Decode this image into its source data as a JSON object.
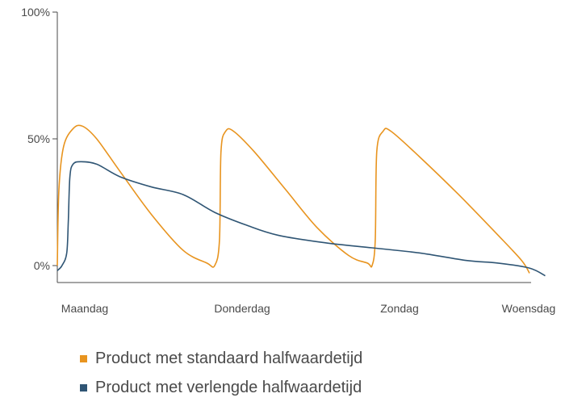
{
  "chart_data": {
    "type": "line",
    "title": "",
    "xlabel": "",
    "ylabel": "",
    "categories": [
      "Maandag",
      "Donderdag",
      "Zondag",
      "Woensdag"
    ],
    "y_ticks": [
      "100%",
      "50%",
      "0%"
    ],
    "ylim": [
      0,
      100
    ],
    "series": [
      {
        "name": "Product met standaard halfwaardetijd",
        "color": "#e8941f",
        "points": [
          [
            0.0,
            0
          ],
          [
            0.01,
            30
          ],
          [
            0.04,
            47
          ],
          [
            0.1,
            54
          ],
          [
            0.16,
            55
          ],
          [
            0.25,
            50
          ],
          [
            0.4,
            37
          ],
          [
            0.6,
            20
          ],
          [
            0.8,
            6
          ],
          [
            0.95,
            1
          ],
          [
            1.0,
            0
          ],
          [
            1.03,
            10
          ],
          [
            1.04,
            45
          ],
          [
            1.07,
            53
          ],
          [
            1.12,
            53
          ],
          [
            1.25,
            45
          ],
          [
            1.45,
            30
          ],
          [
            1.65,
            15
          ],
          [
            1.85,
            4
          ],
          [
            1.97,
            1
          ],
          [
            2.0,
            0
          ],
          [
            2.02,
            10
          ],
          [
            2.03,
            45
          ],
          [
            2.07,
            53
          ],
          [
            2.12,
            53
          ],
          [
            2.3,
            43
          ],
          [
            2.55,
            28
          ],
          [
            2.8,
            12
          ],
          [
            2.95,
            2
          ],
          [
            3.0,
            -3
          ]
        ]
      },
      {
        "name": "Product met verlengde halfwaardetijd",
        "color": "#2f5574",
        "points": [
          [
            0.0,
            -2
          ],
          [
            0.03,
            0
          ],
          [
            0.06,
            5
          ],
          [
            0.07,
            18
          ],
          [
            0.08,
            35
          ],
          [
            0.1,
            40
          ],
          [
            0.15,
            41
          ],
          [
            0.25,
            40
          ],
          [
            0.4,
            35
          ],
          [
            0.6,
            31
          ],
          [
            0.8,
            28
          ],
          [
            1.0,
            21
          ],
          [
            1.2,
            16
          ],
          [
            1.4,
            12
          ],
          [
            1.7,
            9
          ],
          [
            2.0,
            7
          ],
          [
            2.3,
            5
          ],
          [
            2.6,
            2
          ],
          [
            2.8,
            1
          ],
          [
            3.0,
            -1
          ],
          [
            3.1,
            -4
          ]
        ]
      }
    ]
  }
}
